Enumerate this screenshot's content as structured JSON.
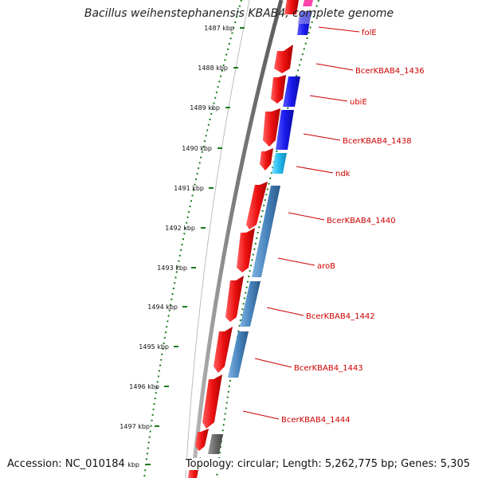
{
  "title": "Bacillus weihenstephanensis KBAB4, complete genome",
  "footer": {
    "accession": "Accession: NC_010184",
    "summary": "Topology: circular; Length: 5,262,775 bp; Genes: 5,305"
  },
  "ticks": [
    "1487 kbp",
    "1488 kbp",
    "1489 kbp",
    "1490 kbp",
    "1491 kbp",
    "1492 kbp",
    "1493 kbp",
    "1494 kbp",
    "1495 kbp",
    "1496 kbp",
    "1497 kbp",
    "1498 kbp"
  ],
  "gene_labels": [
    "folE",
    "BcerKBAB4_1436",
    "ubiE",
    "BcerKBAB4_1438",
    "ndk",
    "BcerKBAB4_1440",
    "aroB",
    "BcerKBAB4_1442",
    "BcerKBAB4_1443",
    "BcerKBAB4_1444"
  ],
  "colors": {
    "cds": "#ee1111",
    "backbone": "#808080",
    "tick": "#1a7a1a",
    "label": "#cc0000",
    "feature_colors": [
      "#2b6fc0",
      "#1a1aee",
      "#22bbee",
      "#4a86bf",
      "#6a6a6a",
      "#ff44aa",
      "#a8a8e8"
    ]
  }
}
